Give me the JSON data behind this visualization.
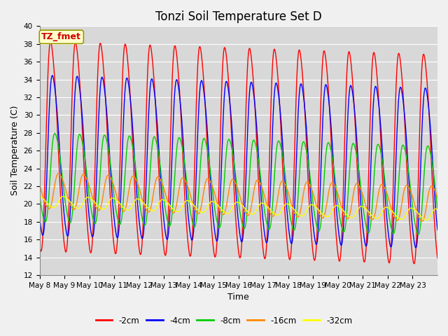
{
  "title": "Tonzi Soil Temperature Set D",
  "xlabel": "Time",
  "ylabel": "Soil Temperature (C)",
  "ylim": [
    12,
    40
  ],
  "yticks": [
    12,
    14,
    16,
    18,
    20,
    22,
    24,
    26,
    28,
    30,
    32,
    34,
    36,
    38,
    40
  ],
  "n_days": 16,
  "points_per_day": 96,
  "series": [
    {
      "label": "-2cm",
      "color": "#ff0000",
      "amplitude": 11.8,
      "mean": 26.5,
      "phase_shift": 0.0,
      "sharpness": 3.5
    },
    {
      "label": "-4cm",
      "color": "#0000ff",
      "amplitude": 9.0,
      "mean": 25.5,
      "phase_shift": 0.07,
      "sharpness": 2.5
    },
    {
      "label": "-8cm",
      "color": "#00cc00",
      "amplitude": 5.0,
      "mean": 23.0,
      "phase_shift": 0.17,
      "sharpness": 1.5
    },
    {
      "label": "-16cm",
      "color": "#ff8800",
      "amplitude": 2.0,
      "mean": 21.5,
      "phase_shift": 0.32,
      "sharpness": 1.0
    },
    {
      "label": "-32cm",
      "color": "#ffff00",
      "amplitude": 0.65,
      "mean": 20.3,
      "phase_shift": 0.5,
      "sharpness": 1.0
    }
  ],
  "tick_labels": [
    "May 8",
    "May 9",
    "May 10",
    "May 11",
    "May 12",
    "May 13",
    "May 14",
    "May 15",
    "May 16",
    "May 17",
    "May 18",
    "May 19",
    "May 20",
    "May 21",
    "May 22",
    "May 23"
  ],
  "legend_label": "TZ_fmet",
  "fig_bg_color": "#f0f0f0",
  "plot_bg_color": "#d8d8d8",
  "grid_color": "#ffffff",
  "title_fontsize": 12,
  "axis_label_fontsize": 9,
  "tick_fontsize": 7.5,
  "legend_fontsize": 8.5,
  "line_width": 1.0
}
